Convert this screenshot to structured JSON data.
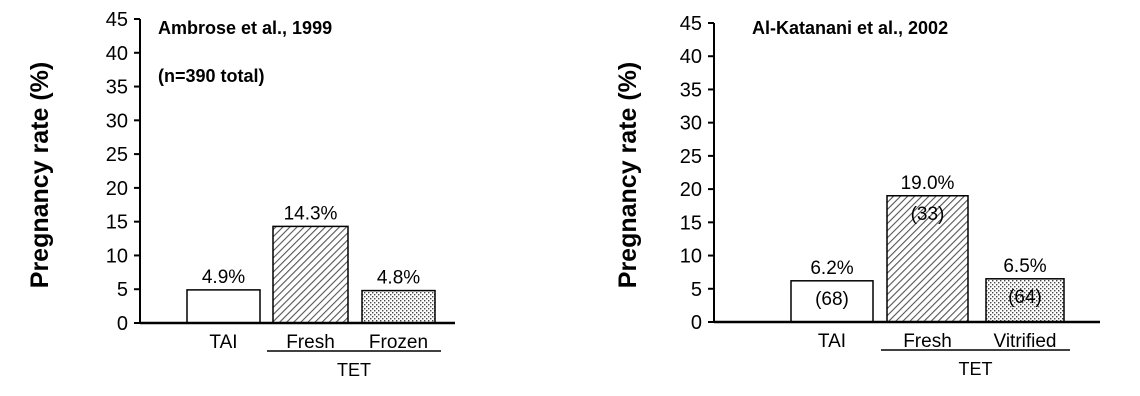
{
  "chart_data": [
    {
      "type": "bar",
      "title": "Ambrose et al., 1999",
      "subtitle": "(n=390 total)",
      "ylabel": "Pregnancy rate (%)",
      "ylim": [
        0,
        45
      ],
      "yticks": [
        0,
        5,
        10,
        15,
        20,
        25,
        30,
        35,
        40,
        45
      ],
      "categories": [
        "TAI",
        "Fresh",
        "Frozen"
      ],
      "values": [
        4.9,
        14.3,
        4.8
      ],
      "data_labels": [
        "4.9%",
        "14.3%",
        "4.8%"
      ],
      "bar_fills": [
        "plain",
        "hatched",
        "dotted"
      ],
      "group_label": "TET",
      "grouped_categories": [
        "Fresh",
        "Frozen"
      ]
    },
    {
      "type": "bar",
      "title": "Al-Katanani et al., 2002",
      "ylabel": "Pregnancy rate (%)",
      "ylim": [
        0,
        45
      ],
      "yticks": [
        0,
        5,
        10,
        15,
        20,
        25,
        30,
        35,
        40,
        45
      ],
      "categories": [
        "TAI",
        "Fresh",
        "Vitrified"
      ],
      "values": [
        6.2,
        19.0,
        6.5
      ],
      "data_labels": [
        "6.2%",
        "19.0%",
        "6.5%"
      ],
      "counts": [
        "(68)",
        "(33)",
        "(64)"
      ],
      "bar_fills": [
        "plain",
        "hatched",
        "dotted"
      ],
      "group_label": "TET",
      "grouped_categories": [
        "Fresh",
        "Vitrified"
      ]
    }
  ]
}
